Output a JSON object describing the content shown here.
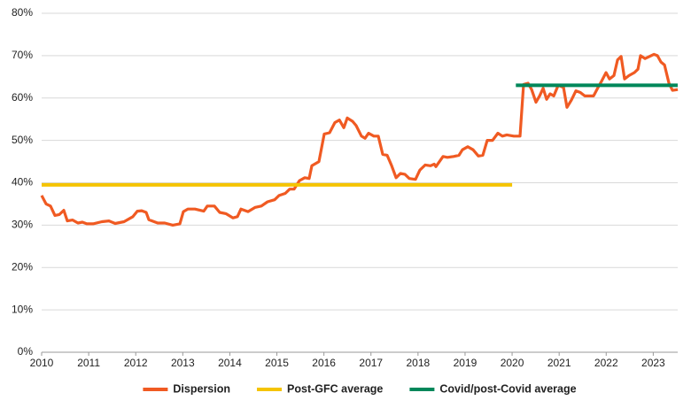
{
  "chart_data": {
    "type": "line",
    "xlim": [
      2010,
      2023.52
    ],
    "xticks": [
      2010,
      2011,
      2012,
      2013,
      2014,
      2015,
      2016,
      2017,
      2018,
      2019,
      2020,
      2021,
      2022,
      2023
    ],
    "ylim": [
      0,
      80
    ],
    "yticks": [
      {
        "value": 0,
        "label": "0%"
      },
      {
        "value": 10,
        "label": "10%"
      },
      {
        "value": 20,
        "label": "20%"
      },
      {
        "value": 30,
        "label": "30%"
      },
      {
        "value": 40,
        "label": "40%"
      },
      {
        "value": 50,
        "label": "50%"
      },
      {
        "value": 60,
        "label": "60%"
      },
      {
        "value": 70,
        "label": "70%"
      },
      {
        "value": 80,
        "label": "80%"
      }
    ],
    "grid": true,
    "legend": "bottom",
    "series": [
      {
        "name": "Dispersion",
        "color": "#f05a22",
        "x": [
          2010,
          2010.094,
          2010.188,
          2010.282,
          2010.377,
          2010.471,
          2010.546,
          2010.659,
          2010.772,
          2010.866,
          2010.96,
          2011.092,
          2011.281,
          2011.431,
          2011.563,
          2011.751,
          2011.94,
          2012.034,
          2012.128,
          2012.222,
          2012.279,
          2012.467,
          2012.618,
          2012.787,
          2012.938,
          2013.013,
          2013.107,
          2013.258,
          2013.446,
          2013.522,
          2013.672,
          2013.785,
          2013.917,
          2014.068,
          2014.162,
          2014.237,
          2014.388,
          2014.539,
          2014.67,
          2014.802,
          2014.953,
          2015.047,
          2015.179,
          2015.273,
          2015.367,
          2015.48,
          2015.593,
          2015.687,
          2015.744,
          2015.894,
          2016.007,
          2016.12,
          2016.233,
          2016.328,
          2016.422,
          2016.497,
          2016.61,
          2016.685,
          2016.798,
          2016.874,
          2016.949,
          2017.062,
          2017.156,
          2017.25,
          2017.344,
          2017.439,
          2017.533,
          2017.627,
          2017.721,
          2017.815,
          2017.947,
          2018.041,
          2018.154,
          2018.267,
          2018.343,
          2018.38,
          2018.531,
          2018.625,
          2018.757,
          2018.87,
          2018.945,
          2019.058,
          2019.171,
          2019.284,
          2019.378,
          2019.472,
          2019.585,
          2019.698,
          2019.793,
          2019.887,
          2020.037,
          2020.169,
          2020.244,
          2020.339,
          2020.414,
          2020.508,
          2020.584,
          2020.659,
          2020.734,
          2020.809,
          2020.885,
          2020.979,
          2021.092,
          2021.167,
          2021.261,
          2021.356,
          2021.45,
          2021.544,
          2021.732,
          2021.827,
          2021.902,
          2021.996,
          2022.071,
          2022.165,
          2022.241,
          2022.316,
          2022.391,
          2022.485,
          2022.599,
          2022.674,
          2022.73,
          2022.825,
          2022.919,
          2023.013,
          2023.089,
          2023.164,
          2023.239,
          2023.333,
          2023.409,
          2023.522
        ],
        "values": [
          37,
          35,
          34.5,
          32.3,
          32.5,
          33.5,
          31,
          31.2,
          30.5,
          30.7,
          30.3,
          30.3,
          30.8,
          31,
          30.4,
          30.8,
          32,
          33.3,
          33.4,
          33,
          31.3,
          30.5,
          30.5,
          30,
          30.3,
          33.2,
          33.8,
          33.8,
          33.3,
          34.5,
          34.5,
          33,
          32.7,
          31.7,
          32,
          33.8,
          33.2,
          34.2,
          34.5,
          35.5,
          36,
          37,
          37.5,
          38.5,
          38.5,
          40.5,
          41.2,
          41,
          44,
          45,
          51.5,
          51.8,
          54.2,
          54.8,
          53,
          55.3,
          54.5,
          53.5,
          51,
          50.5,
          51.7,
          51,
          51,
          46.7,
          46.5,
          44,
          41.2,
          42.2,
          42,
          41,
          40.8,
          43,
          44.2,
          44,
          44.4,
          43.8,
          46.2,
          46,
          46.2,
          46.5,
          47.8,
          48.5,
          47.8,
          46.3,
          46.5,
          50,
          50,
          51.7,
          51,
          51.3,
          51,
          51,
          63.2,
          63.5,
          62,
          59,
          60.5,
          62.3,
          59.7,
          61,
          60.5,
          63,
          62.5,
          57.8,
          59.5,
          61.7,
          61.3,
          60.5,
          60.5,
          62.5,
          64,
          66,
          64.5,
          65.3,
          69,
          69.8,
          64.5,
          65.3,
          66,
          66.8,
          70,
          69.3,
          69.8,
          70.3,
          70,
          68.5,
          67.8,
          63.5,
          61.8,
          62
        ]
      },
      {
        "name": "Post-GFC average",
        "color": "#f5c400",
        "x": [
          2010,
          2020
        ],
        "values": [
          39.5,
          39.5
        ]
      },
      {
        "name": "Covid/post-Covid average",
        "color": "#00875a",
        "x": [
          2020.08,
          2023.52
        ],
        "values": [
          63,
          63
        ]
      }
    ]
  }
}
